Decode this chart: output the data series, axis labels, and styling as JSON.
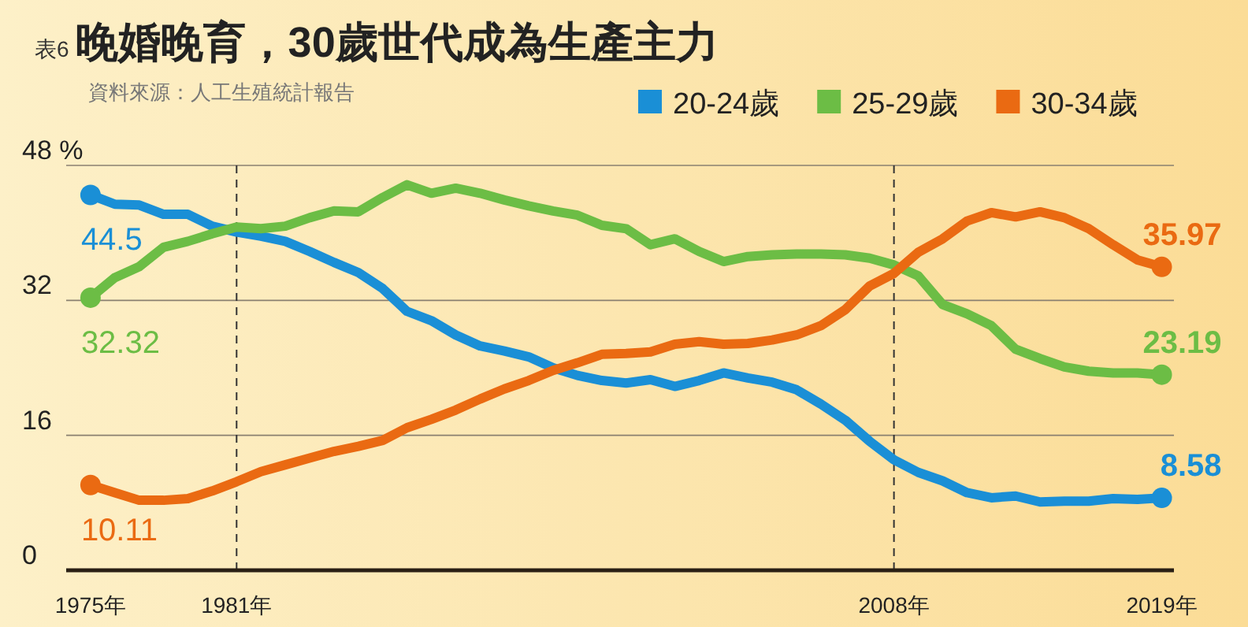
{
  "chart_data": {
    "type": "line",
    "title": "晚婚晚育，30歲世代成為生產主力",
    "subtitle": "資料來源：人工生殖統計報告",
    "annotations": [
      "表6"
    ],
    "x": [
      1975,
      1976,
      1977,
      1978,
      1979,
      1980,
      1981,
      1982,
      1983,
      1984,
      1985,
      1986,
      1987,
      1988,
      1989,
      1990,
      1991,
      1992,
      1993,
      1994,
      1995,
      1996,
      1997,
      1998,
      1999,
      2000,
      2001,
      2002,
      2003,
      2004,
      2005,
      2006,
      2007,
      2008,
      2009,
      2010,
      2011,
      2012,
      2013,
      2014,
      2015,
      2016,
      2017,
      2018,
      2019
    ],
    "series": [
      {
        "name": "20-24歲",
        "color": "#1a8fd6",
        "values": [
          44.5,
          43.4,
          43.3,
          42.2,
          42.2,
          40.8,
          40.1,
          39.6,
          39.0,
          37.8,
          36.5,
          35.3,
          33.4,
          30.7,
          29.6,
          27.9,
          26.6,
          26.0,
          25.3,
          24.0,
          23.1,
          22.5,
          22.2,
          22.6,
          21.8,
          22.5,
          23.4,
          22.8,
          22.3,
          21.4,
          19.7,
          17.8,
          15.3,
          13.1,
          11.6,
          10.6,
          9.2,
          8.6,
          8.8,
          8.1,
          8.2,
          8.2,
          8.5,
          8.4,
          8.58
        ],
        "value_labels": [
          "44.5",
          null,
          null,
          null,
          null,
          null,
          null,
          null,
          null,
          null,
          null,
          null,
          null,
          null,
          null,
          null,
          null,
          null,
          null,
          null,
          null,
          null,
          null,
          null,
          null,
          null,
          null,
          null,
          null,
          null,
          null,
          null,
          null,
          null,
          null,
          null,
          null,
          null,
          null,
          null,
          null,
          null,
          null,
          null,
          "8.58"
        ]
      },
      {
        "name": "25-29歲",
        "color": "#6cbd45",
        "values": [
          32.32,
          34.7,
          36.0,
          38.3,
          39.0,
          39.9,
          40.7,
          40.5,
          40.8,
          41.8,
          42.6,
          42.5,
          44.2,
          45.7,
          44.7,
          45.3,
          44.7,
          43.9,
          43.2,
          42.6,
          42.1,
          40.9,
          40.5,
          38.6,
          39.3,
          37.8,
          36.6,
          37.2,
          37.4,
          37.5,
          37.5,
          37.4,
          37.0,
          36.2,
          34.9,
          31.5,
          30.4,
          29.0,
          26.2,
          25.1,
          24.1,
          23.6,
          23.4,
          23.4,
          23.19
        ],
        "value_labels": [
          "32.32",
          null,
          null,
          null,
          null,
          null,
          null,
          null,
          null,
          null,
          null,
          null,
          null,
          null,
          null,
          null,
          null,
          null,
          null,
          null,
          null,
          null,
          null,
          null,
          null,
          null,
          null,
          null,
          null,
          null,
          null,
          null,
          null,
          null,
          null,
          null,
          null,
          null,
          null,
          null,
          null,
          null,
          null,
          null,
          "23.19"
        ]
      },
      {
        "name": "30-34歲",
        "color": "#ea6a12",
        "values": [
          10.11,
          9.2,
          8.3,
          8.3,
          8.5,
          9.4,
          10.5,
          11.7,
          12.5,
          13.3,
          14.1,
          14.7,
          15.4,
          16.9,
          17.9,
          19.0,
          20.3,
          21.5,
          22.5,
          23.7,
          24.6,
          25.6,
          25.7,
          25.9,
          26.8,
          27.1,
          26.8,
          26.9,
          27.3,
          27.9,
          29.0,
          30.9,
          33.7,
          35.2,
          37.7,
          39.3,
          41.4,
          42.4,
          41.9,
          42.5,
          41.8,
          40.5,
          38.6,
          36.8,
          35.97
        ],
        "value_labels": [
          "10.11",
          null,
          null,
          null,
          null,
          null,
          null,
          null,
          null,
          null,
          null,
          null,
          null,
          null,
          null,
          null,
          null,
          null,
          null,
          null,
          null,
          null,
          null,
          null,
          null,
          null,
          null,
          null,
          null,
          null,
          null,
          null,
          null,
          null,
          null,
          null,
          null,
          null,
          null,
          null,
          null,
          null,
          null,
          null,
          "35.97"
        ]
      }
    ],
    "xlim": [
      1974,
      2019.5
    ],
    "ylim": [
      0,
      48
    ],
    "xticks": [
      {
        "value": 1975,
        "label": "1975年"
      },
      {
        "value": 1981,
        "label": "1981年"
      },
      {
        "value": 2008,
        "label": "2008年"
      },
      {
        "value": 2019,
        "label": "2019年"
      }
    ],
    "yticks": [
      0,
      16,
      32,
      {
        "value": 48,
        "label": "48 %"
      }
    ],
    "ref_lines": [
      {
        "axis": "x",
        "value": 1981,
        "line_style": "dashed"
      },
      {
        "axis": "x",
        "value": 2008,
        "line_style": "dashed"
      }
    ],
    "grid": "y",
    "legend": "top right",
    "line_style": "solid"
  }
}
